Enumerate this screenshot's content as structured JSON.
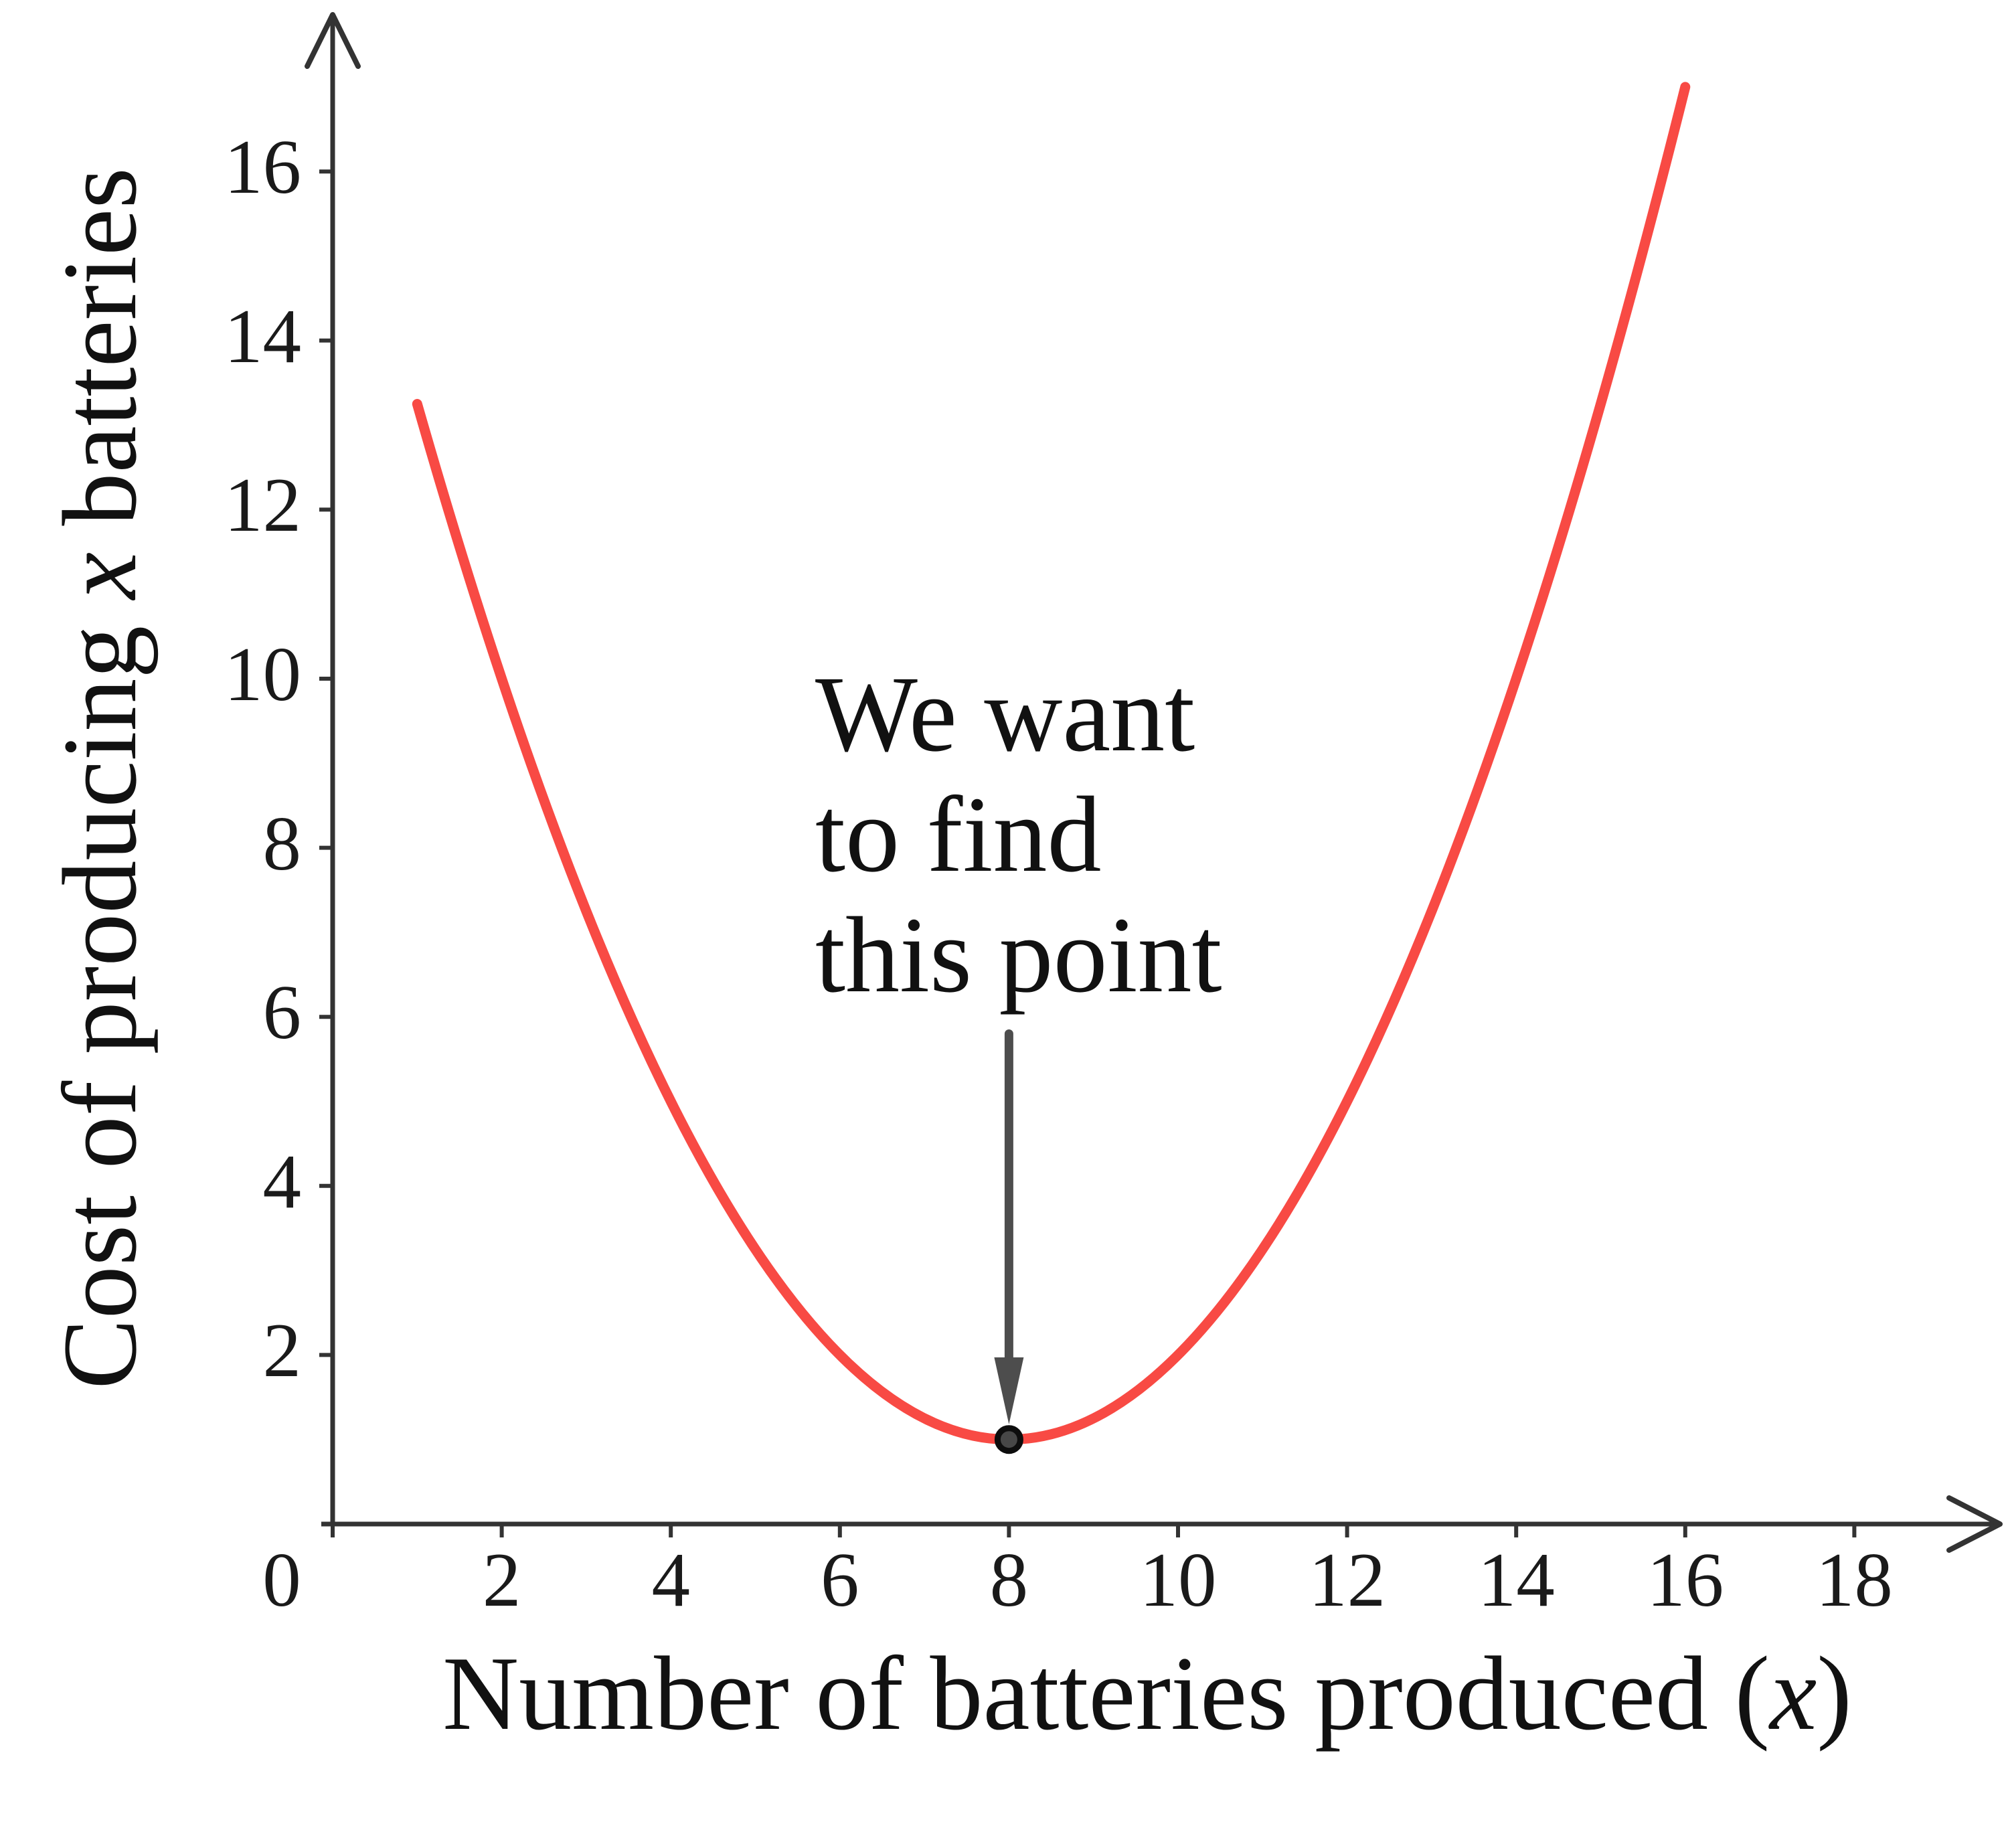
{
  "figure": {
    "background_color": "#ffffff"
  },
  "chart_data": {
    "type": "line",
    "title": "",
    "xlabel": "Number of batteries produced (x)",
    "xlabel_segments": [
      {
        "text": "Number of batteries produced ("
      },
      {
        "text": "x",
        "italic": true
      },
      {
        "text": ")"
      }
    ],
    "ylabel": "Cost of producing x batteries",
    "ylabel_segments": [
      {
        "text": "Cost of producing "
      },
      {
        "text": "x",
        "italic": true
      },
      {
        "text": " batteries"
      }
    ],
    "x_ticks": [
      0,
      2,
      4,
      6,
      8,
      10,
      12,
      14,
      16,
      18
    ],
    "y_ticks": [
      2,
      4,
      6,
      8,
      10,
      12,
      14,
      16
    ],
    "xlim": [
      0,
      19.7
    ],
    "ylim": [
      0,
      17.8
    ],
    "grid": false,
    "legend": false,
    "axis_color": "#333333",
    "tick_label_color": "#1a1a1a",
    "text_color": "#111111",
    "series": [
      {
        "name": "cost-curve",
        "color": "#f84a44",
        "equation": "y = 0.25*(x-8)^2 + 1",
        "coeff_a": 0.25,
        "vertex": [
          8,
          1
        ],
        "x_domain": [
          1,
          16
        ],
        "sample_points": [
          [
            1,
            13.25
          ],
          [
            2,
            10
          ],
          [
            4,
            5
          ],
          [
            6,
            2
          ],
          [
            8,
            1
          ],
          [
            10,
            2
          ],
          [
            12,
            5
          ],
          [
            14,
            10
          ],
          [
            16,
            17
          ]
        ]
      }
    ],
    "marked_point": {
      "x": 8,
      "y": 1,
      "fill_color": "#474747",
      "edge_color": "#0d0d0d"
    },
    "annotation": {
      "lines": [
        "We want",
        "to find",
        "this point"
      ],
      "arrow_color": "#4d4d4d",
      "arrow_from_y": 5.8,
      "arrow_to": [
        8,
        1
      ]
    }
  }
}
